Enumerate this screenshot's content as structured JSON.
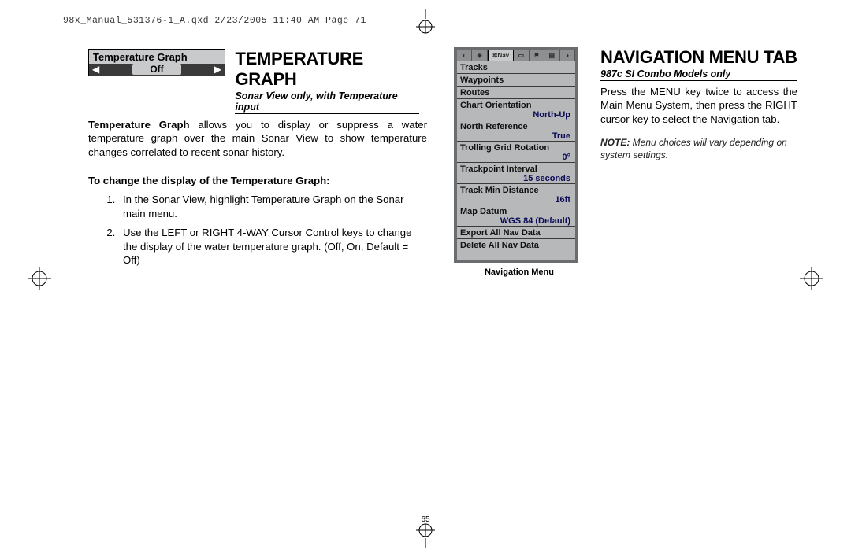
{
  "header_meta": "98x_Manual_531376-1_A.qxd  2/23/2005  11:40 AM  Page 71",
  "page_number": "65",
  "left": {
    "widget": {
      "title": "Temperature Graph",
      "value": "Off",
      "arrow_left": "◀",
      "arrow_right": "▶"
    },
    "title": "TEMPERATURE GRAPH",
    "subtitle": "Sonar View only, with Temperature input",
    "para_bold_lead": "Temperature Graph ",
    "para_rest": "allows you to display or suppress a water temperature graph over the main Sonar View to show temperature changes correlated to recent sonar history.",
    "change_heading": "To change the display of the Temperature Graph:",
    "steps": [
      "In the Sonar View, highlight Temperature Graph on the Sonar main menu.",
      "Use the LEFT or RIGHT 4-WAY Cursor Control keys to change the display of the water temperature graph. (Off, On, Default = Off)"
    ]
  },
  "right": {
    "nav_menu": {
      "active_tab": "✲Nav",
      "rows": [
        {
          "label": "Tracks",
          "value": ""
        },
        {
          "label": "Waypoints",
          "value": ""
        },
        {
          "label": "Routes",
          "value": ""
        },
        {
          "label": "Chart Orientation",
          "value": "North-Up"
        },
        {
          "label": "North Reference",
          "value": "True"
        },
        {
          "label": "Trolling Grid Rotation",
          "value": "0°"
        },
        {
          "label": "Trackpoint Interval",
          "value": "15 seconds"
        },
        {
          "label": "Track Min Distance",
          "value": "16ft"
        },
        {
          "label": "Map Datum",
          "value": "WGS 84 (Default)"
        },
        {
          "label": "Export All Nav Data",
          "value": ""
        },
        {
          "label": "Delete All Nav Data",
          "value": ""
        }
      ],
      "caption": "Navigation Menu"
    },
    "title": "NAVIGATION MENU TAB",
    "subtitle": "987c SI Combo Models only",
    "body": "Press the MENU key twice to access the Main Menu System, then press the RIGHT cursor key to select the Navigation tab.",
    "note_bold": "NOTE:",
    "note_rest": " Menu choices will vary depending on system settings."
  }
}
